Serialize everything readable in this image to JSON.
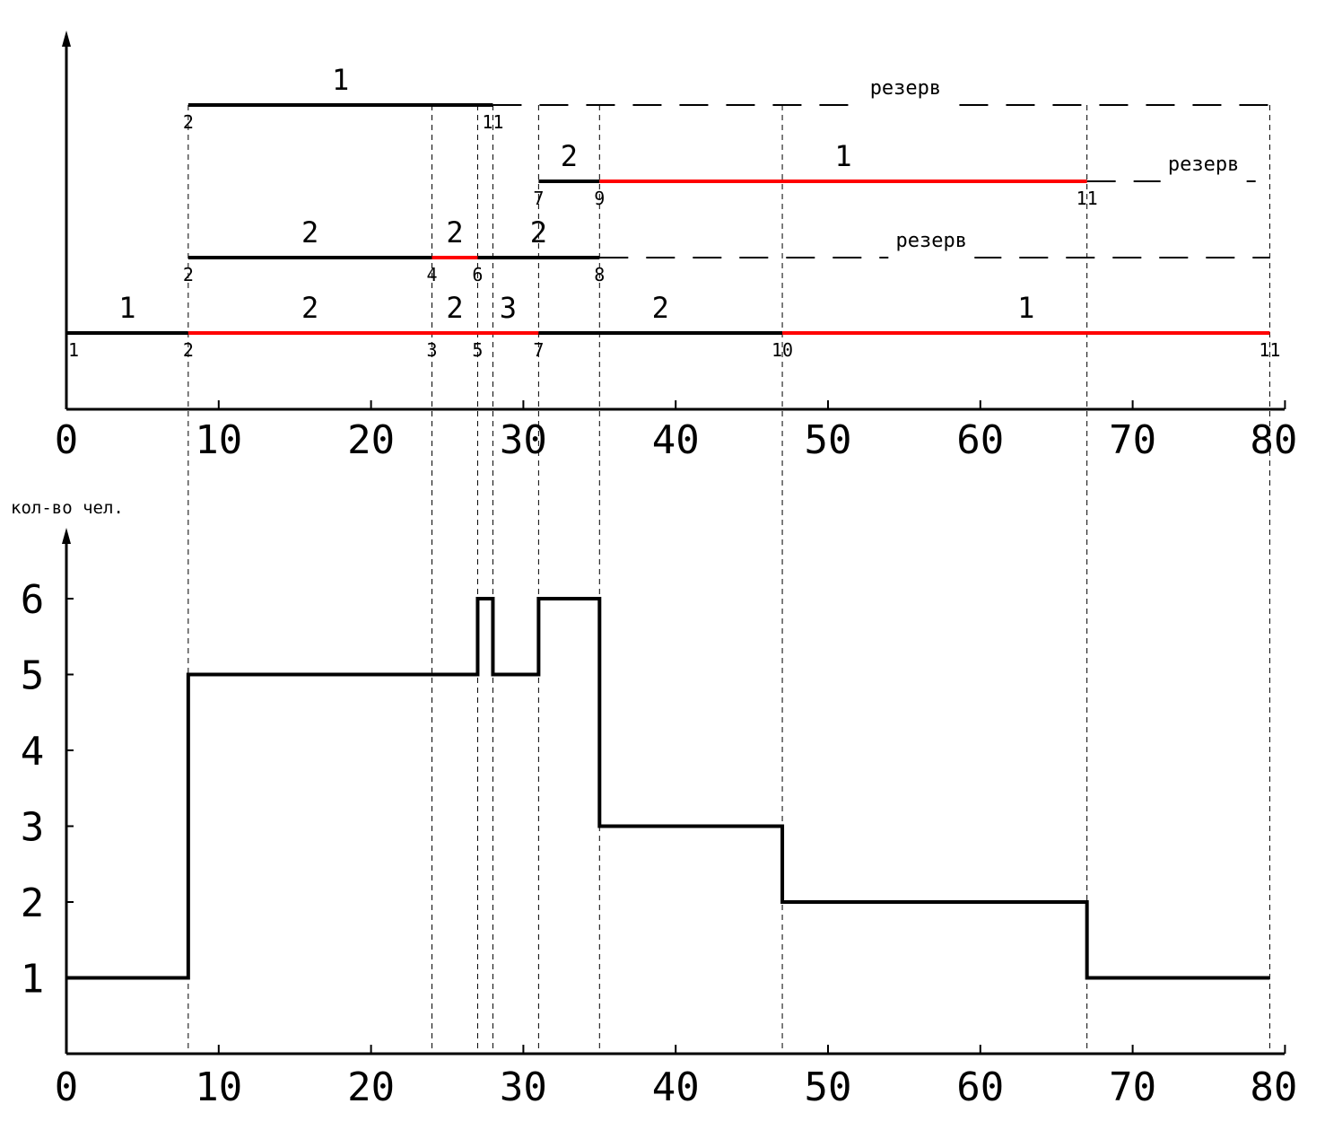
{
  "chart_data": [
    {
      "type": "line",
      "title": "",
      "xlabel": "",
      "ylabel": "",
      "xlim": [
        0,
        80
      ],
      "x_ticks": [
        "0",
        "10",
        "20",
        "30",
        "40",
        "50",
        "60",
        "70",
        "80"
      ],
      "tracks": [
        {
          "segments": [
            {
              "start": 0,
              "end": 8,
              "label": "1",
              "critical": false
            },
            {
              "start": 8,
              "end": 24,
              "label": "2",
              "critical": true
            },
            {
              "start": 24,
              "end": 27,
              "label": "2",
              "critical": true
            },
            {
              "start": 27,
              "end": 31,
              "label": "3",
              "critical": true
            },
            {
              "start": 31,
              "end": 47,
              "label": "2",
              "critical": false
            },
            {
              "start": 47,
              "end": 79,
              "label": "1",
              "critical": true
            }
          ],
          "nodes": [
            {
              "x": 0,
              "label": "1"
            },
            {
              "x": 8,
              "label": "2"
            },
            {
              "x": 24,
              "label": "3"
            },
            {
              "x": 27,
              "label": "5"
            },
            {
              "x": 31,
              "label": "7"
            },
            {
              "x": 47,
              "label": "10"
            },
            {
              "x": 79,
              "label": "11"
            }
          ],
          "reserve": null
        },
        {
          "segments": [
            {
              "start": 8,
              "end": 24,
              "label": "2",
              "critical": false
            },
            {
              "start": 24,
              "end": 27,
              "label": "2",
              "critical": true
            },
            {
              "start": 27,
              "end": 35,
              "label": "2",
              "critical": false
            }
          ],
          "nodes": [
            {
              "x": 8,
              "label": "2"
            },
            {
              "x": 24,
              "label": "4"
            },
            {
              "x": 27,
              "label": "6"
            },
            {
              "x": 35,
              "label": "8"
            }
          ],
          "reserve": {
            "start": 35,
            "end": 79,
            "label": "резерв"
          }
        },
        {
          "segments": [
            {
              "start": 31,
              "end": 35,
              "label": "2",
              "critical": false
            },
            {
              "start": 35,
              "end": 67,
              "label": "1",
              "critical": true
            }
          ],
          "nodes": [
            {
              "x": 31,
              "label": "7"
            },
            {
              "x": 35,
              "label": "9"
            },
            {
              "x": 67,
              "label": "11"
            }
          ],
          "reserve": {
            "start": 67,
            "end": 79,
            "label": "резерв"
          }
        },
        {
          "segments": [
            {
              "start": 8,
              "end": 28,
              "label": "1",
              "critical": false
            }
          ],
          "nodes": [
            {
              "x": 8,
              "label": "2"
            },
            {
              "x": 28,
              "label": "11"
            }
          ],
          "reserve": {
            "start": 28,
            "end": 79,
            "label": "резерв"
          }
        }
      ],
      "colors": {
        "critical": "#ff0000",
        "normal": "#000000"
      }
    },
    {
      "type": "line",
      "title": "",
      "xlabel": "",
      "ylabel": "кол-во чел.",
      "xlim": [
        0,
        80
      ],
      "ylim": [
        0,
        7
      ],
      "x_ticks": [
        "0",
        "10",
        "20",
        "30",
        "40",
        "50",
        "60",
        "70",
        "80"
      ],
      "y_ticks": [
        "1",
        "2",
        "3",
        "4",
        "5",
        "6"
      ],
      "step": true,
      "x": [
        0,
        8,
        27,
        28,
        31,
        35,
        47,
        67,
        79
      ],
      "y": [
        1,
        5,
        6,
        5,
        6,
        3,
        2,
        1,
        1
      ],
      "grid": false
    }
  ],
  "guide_lines_x": [
    8,
    24,
    27,
    28,
    31,
    35,
    47,
    67,
    79
  ]
}
